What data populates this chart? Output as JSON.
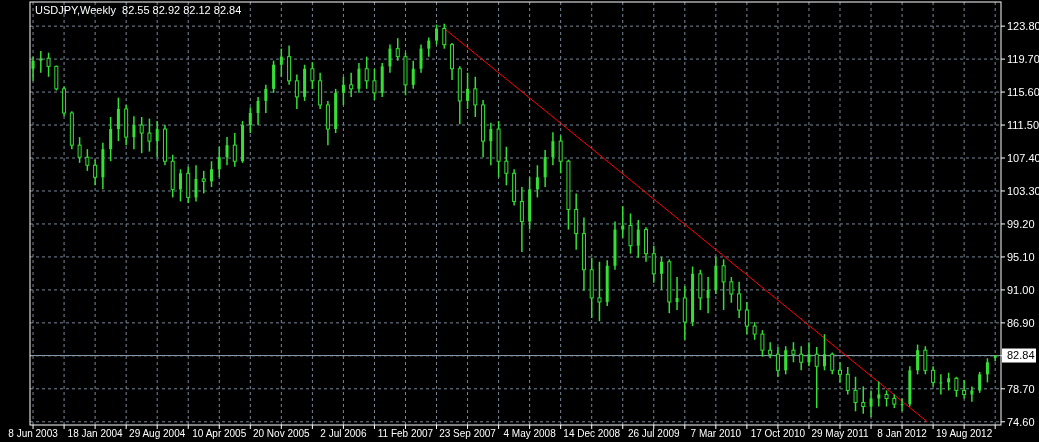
{
  "chart_data": {
    "type": "candlestick",
    "title": "USDJPY,Weekly  82.55 82.92 82.12 82.84",
    "color": "#33e033",
    "x": [
      "2003-06-08",
      "2003-07-06",
      "2003-08-03",
      "2003-08-31",
      "2003-09-28",
      "2003-10-26",
      "2003-11-23",
      "2003-12-21",
      "2004-01-18",
      "2004-02-15",
      "2004-03-14",
      "2004-04-11",
      "2004-05-09",
      "2004-06-06",
      "2004-07-04",
      "2004-08-01",
      "2004-08-29",
      "2004-09-26",
      "2004-10-24",
      "2004-11-21",
      "2004-12-19",
      "2005-01-16",
      "2005-02-13",
      "2005-03-13",
      "2005-04-10",
      "2005-05-08",
      "2005-06-05",
      "2005-07-03",
      "2005-07-31",
      "2005-08-28",
      "2005-09-25",
      "2005-10-23",
      "2005-11-20",
      "2005-12-18",
      "2006-01-15",
      "2006-02-12",
      "2006-03-12",
      "2006-04-09",
      "2006-05-07",
      "2006-06-04",
      "2006-07-02",
      "2006-07-30",
      "2006-08-27",
      "2006-09-24",
      "2006-10-22",
      "2006-11-19",
      "2006-12-17",
      "2007-01-14",
      "2007-02-11",
      "2007-03-11",
      "2007-04-08",
      "2007-05-06",
      "2007-06-03",
      "2007-07-01",
      "2007-07-29",
      "2007-08-26",
      "2007-09-23",
      "2007-10-21",
      "2007-11-18",
      "2007-12-16",
      "2008-01-13",
      "2008-02-10",
      "2008-03-09",
      "2008-04-06",
      "2008-05-04",
      "2008-06-01",
      "2008-06-29",
      "2008-07-27",
      "2008-08-24",
      "2008-09-21",
      "2008-10-19",
      "2008-11-16",
      "2008-12-14",
      "2009-01-11",
      "2009-02-08",
      "2009-03-08",
      "2009-04-05",
      "2009-05-03",
      "2009-05-31",
      "2009-06-28",
      "2009-07-26",
      "2009-08-23",
      "2009-09-20",
      "2009-10-18",
      "2009-11-15",
      "2009-12-13",
      "2010-01-10",
      "2010-02-07",
      "2010-03-07",
      "2010-04-04",
      "2010-05-02",
      "2010-05-30",
      "2010-06-27",
      "2010-07-25",
      "2010-08-22",
      "2010-09-19",
      "2010-10-17",
      "2010-11-14",
      "2010-12-12",
      "2011-01-09",
      "2011-02-06",
      "2011-03-06",
      "2011-04-03",
      "2011-05-01",
      "2011-05-29",
      "2011-06-26",
      "2011-07-24",
      "2011-08-21",
      "2011-09-18",
      "2011-10-16",
      "2011-11-13",
      "2011-12-11",
      "2012-01-08",
      "2012-02-05",
      "2012-03-04",
      "2012-04-01",
      "2012-04-29",
      "2012-05-27",
      "2012-06-24",
      "2012-07-22",
      "2012-08-19",
      "2012-09-16",
      "2012-10-14",
      "2012-11-11",
      "2012-12-09"
    ],
    "ohlc": [
      [
        118.5,
        120.0,
        117.0,
        119.5
      ],
      [
        119.5,
        120.7,
        118.0,
        119.8
      ],
      [
        119.8,
        120.5,
        117.5,
        118.8
      ],
      [
        118.8,
        118.9,
        115.8,
        116.0
      ],
      [
        116.0,
        116.3,
        112.6,
        113.0
      ],
      [
        113.0,
        113.2,
        108.5,
        109.0
      ],
      [
        109.0,
        110.0,
        106.8,
        107.5
      ],
      [
        107.5,
        108.5,
        105.8,
        106.5
      ],
      [
        106.5,
        107.2,
        104.0,
        105.0
      ],
      [
        105.0,
        109.3,
        103.5,
        108.5
      ],
      [
        108.5,
        112.5,
        107.0,
        111.0
      ],
      [
        111.0,
        114.9,
        109.5,
        113.5
      ],
      [
        113.5,
        114.0,
        109.0,
        110.0
      ],
      [
        110.0,
        112.6,
        108.5,
        111.5
      ],
      [
        111.5,
        112.5,
        108.0,
        110.5
      ],
      [
        110.5,
        112.3,
        108.2,
        109.5
      ],
      [
        109.5,
        112.0,
        107.5,
        111.0
      ],
      [
        111.0,
        111.5,
        106.5,
        107.0
      ],
      [
        107.0,
        107.8,
        102.5,
        103.5
      ],
      [
        103.5,
        106.0,
        102.0,
        105.5
      ],
      [
        105.5,
        106.3,
        101.8,
        102.5
      ],
      [
        102.5,
        106.5,
        102.0,
        104.8
      ],
      [
        104.8,
        105.8,
        103.0,
        104.5
      ],
      [
        104.5,
        107.0,
        103.8,
        106.0
      ],
      [
        106.0,
        108.8,
        105.0,
        107.5
      ],
      [
        107.5,
        110.0,
        106.5,
        109.0
      ],
      [
        109.0,
        110.5,
        106.3,
        107.0
      ],
      [
        107.0,
        112.0,
        106.8,
        111.5
      ],
      [
        111.5,
        113.7,
        110.5,
        113.0
      ],
      [
        113.0,
        115.0,
        111.5,
        114.5
      ],
      [
        114.5,
        116.5,
        113.0,
        116.0
      ],
      [
        116.0,
        119.5,
        115.5,
        119.0
      ],
      [
        119.0,
        121.0,
        117.5,
        120.0
      ],
      [
        120.0,
        121.4,
        116.5,
        117.0
      ],
      [
        117.0,
        117.8,
        113.5,
        115.0
      ],
      [
        115.0,
        119.0,
        114.5,
        118.5
      ],
      [
        118.5,
        119.3,
        116.0,
        117.0
      ],
      [
        117.0,
        118.0,
        113.5,
        114.0
      ],
      [
        114.0,
        114.5,
        109.0,
        111.0
      ],
      [
        111.0,
        116.0,
        110.5,
        115.5
      ],
      [
        115.5,
        117.5,
        114.0,
        116.5
      ],
      [
        116.5,
        118.0,
        115.0,
        116.0
      ],
      [
        116.0,
        119.2,
        115.5,
        118.5
      ],
      [
        118.5,
        120.0,
        116.0,
        117.0
      ],
      [
        117.0,
        118.5,
        114.6,
        115.5
      ],
      [
        115.5,
        119.2,
        115.0,
        118.8
      ],
      [
        118.8,
        121.5,
        118.0,
        121.0
      ],
      [
        121.0,
        122.3,
        119.5,
        120.0
      ],
      [
        120.0,
        120.5,
        115.2,
        116.5
      ],
      [
        116.5,
        119.5,
        116.0,
        118.5
      ],
      [
        118.5,
        121.5,
        118.0,
        121.0
      ],
      [
        121.0,
        122.4,
        120.0,
        122.0
      ],
      [
        122.0,
        124.0,
        121.5,
        123.5
      ],
      [
        123.5,
        124.1,
        121.0,
        121.5
      ],
      [
        121.5,
        121.7,
        117.1,
        118.5
      ],
      [
        118.5,
        118.8,
        111.6,
        114.5
      ],
      [
        114.5,
        118.0,
        113.5,
        116.0
      ],
      [
        116.0,
        117.5,
        112.5,
        114.0
      ],
      [
        114.0,
        114.6,
        107.5,
        109.5
      ],
      [
        109.5,
        111.8,
        106.5,
        111.0
      ],
      [
        111.0,
        112.0,
        105.0,
        107.0
      ],
      [
        107.0,
        108.8,
        104.0,
        105.5
      ],
      [
        105.5,
        106.0,
        101.5,
        102.0
      ],
      [
        102.0,
        103.8,
        95.7,
        99.5
      ],
      [
        99.5,
        105.0,
        98.5,
        103.5
      ],
      [
        103.5,
        106.5,
        102.5,
        105.0
      ],
      [
        105.0,
        108.4,
        103.8,
        107.5
      ],
      [
        107.5,
        110.6,
        106.5,
        109.5
      ],
      [
        109.5,
        110.2,
        105.5,
        107.0
      ],
      [
        107.0,
        107.2,
        98.5,
        101.0
      ],
      [
        101.0,
        103.0,
        96.0,
        98.0
      ],
      [
        98.0,
        100.0,
        90.9,
        93.5
      ],
      [
        93.5,
        95.0,
        87.5,
        90.0
      ],
      [
        90.0,
        94.5,
        87.1,
        89.5
      ],
      [
        89.5,
        94.7,
        89.0,
        94.0
      ],
      [
        94.0,
        99.5,
        93.5,
        98.5
      ],
      [
        98.5,
        101.4,
        97.5,
        99.0
      ],
      [
        99.0,
        100.5,
        95.5,
        96.5
      ],
      [
        96.5,
        99.7,
        95.0,
        98.5
      ],
      [
        98.5,
        98.8,
        94.5,
        95.5
      ],
      [
        95.5,
        96.5,
        91.9,
        93.0
      ],
      [
        93.0,
        95.1,
        91.0,
        94.5
      ],
      [
        94.5,
        94.8,
        88.1,
        89.5
      ],
      [
        89.5,
        92.6,
        88.5,
        90.0
      ],
      [
        90.0,
        91.5,
        84.8,
        87.0
      ],
      [
        87.0,
        93.9,
        86.5,
        93.0
      ],
      [
        93.0,
        93.5,
        88.5,
        90.0
      ],
      [
        90.0,
        92.6,
        88.1,
        91.0
      ],
      [
        91.0,
        95.1,
        90.5,
        94.0
      ],
      [
        94.0,
        94.8,
        88.5,
        92.0
      ],
      [
        92.0,
        92.6,
        89.4,
        90.5
      ],
      [
        90.5,
        92.0,
        87.5,
        88.5
      ],
      [
        88.5,
        89.5,
        85.5,
        86.5
      ],
      [
        86.5,
        87.0,
        84.8,
        85.5
      ],
      [
        85.5,
        86.0,
        82.7,
        83.5
      ],
      [
        83.5,
        84.5,
        82.5,
        83.0
      ],
      [
        83.0,
        83.9,
        80.2,
        81.0
      ],
      [
        81.0,
        84.0,
        80.5,
        83.5
      ],
      [
        83.5,
        84.5,
        82.0,
        83.0
      ],
      [
        83.0,
        84.0,
        81.0,
        82.0
      ],
      [
        82.0,
        84.5,
        81.5,
        83.0
      ],
      [
        83.0,
        83.9,
        76.3,
        81.5
      ],
      [
        81.5,
        85.5,
        81.0,
        83.0
      ],
      [
        83.0,
        83.2,
        80.5,
        81.0
      ],
      [
        81.0,
        82.0,
        79.5,
        80.5
      ],
      [
        80.5,
        81.4,
        78.0,
        78.5
      ],
      [
        78.5,
        80.2,
        75.9,
        77.0
      ],
      [
        77.0,
        79.0,
        75.6,
        76.5
      ],
      [
        76.5,
        78.5,
        75.2,
        77.5
      ],
      [
        77.5,
        79.6,
        76.5,
        78.0
      ],
      [
        78.0,
        78.5,
        76.5,
        77.5
      ],
      [
        77.5,
        78.0,
        76.3,
        76.8
      ],
      [
        76.8,
        77.5,
        75.9,
        76.8
      ],
      [
        76.8,
        81.5,
        76.5,
        81.0
      ],
      [
        81.0,
        84.2,
        80.5,
        83.5
      ],
      [
        83.5,
        84.0,
        80.5,
        81.0
      ],
      [
        81.0,
        81.5,
        79.0,
        79.5
      ],
      [
        79.5,
        80.5,
        78.0,
        79.5
      ],
      [
        79.5,
        80.7,
        78.5,
        80.0
      ],
      [
        80.0,
        80.2,
        77.7,
        78.5
      ],
      [
        78.5,
        79.8,
        77.5,
        78.0
      ],
      [
        78.0,
        79.0,
        77.1,
        78.5
      ],
      [
        78.5,
        80.8,
        78.2,
        80.5
      ],
      [
        80.5,
        82.5,
        79.5,
        82.0
      ],
      [
        82.55,
        82.92,
        82.12,
        82.84
      ]
    ],
    "series": [
      {
        "type": "line",
        "color": "#ff0000",
        "x": [
          "2007-07-01",
          "2012-04-08"
        ],
        "values": [
          123.5,
          74.6
        ]
      }
    ],
    "xlim": [
      "2003-05-28",
      "2012-12-30"
    ],
    "ylim": [
      74.2,
      126.8
    ],
    "xticks": [
      {
        "value": "2003-06-08",
        "label": "8 Jun 2003"
      },
      {
        "value": "2003-09-28",
        "label": null
      },
      {
        "value": "2004-01-18",
        "label": "18 Jan 2004"
      },
      {
        "value": "2004-05-09",
        "label": null
      },
      {
        "value": "2004-08-29",
        "label": "29 Aug 2004"
      },
      {
        "value": "2004-12-19",
        "label": null
      },
      {
        "value": "2005-04-10",
        "label": "10 Apr 2005"
      },
      {
        "value": "2005-07-31",
        "label": null
      },
      {
        "value": "2005-11-20",
        "label": "20 Nov 2005"
      },
      {
        "value": "2006-03-12",
        "label": null
      },
      {
        "value": "2006-07-02",
        "label": "2 Jul 2006"
      },
      {
        "value": "2006-10-22",
        "label": null
      },
      {
        "value": "2007-02-11",
        "label": "11 Feb 2007"
      },
      {
        "value": "2007-06-03",
        "label": null
      },
      {
        "value": "2007-09-23",
        "label": "23 Sep 2007"
      },
      {
        "value": "2008-01-13",
        "label": null
      },
      {
        "value": "2008-05-04",
        "label": "4 May 2008"
      },
      {
        "value": "2008-08-24",
        "label": null
      },
      {
        "value": "2008-12-14",
        "label": "14 Dec 2008"
      },
      {
        "value": "2009-04-05",
        "label": null
      },
      {
        "value": "2009-07-26",
        "label": "26 Jul 2009"
      },
      {
        "value": "2009-11-15",
        "label": null
      },
      {
        "value": "2010-03-07",
        "label": "7 Mar 2010"
      },
      {
        "value": "2010-06-27",
        "label": null
      },
      {
        "value": "2010-10-17",
        "label": "17 Oct 2010"
      },
      {
        "value": "2011-02-06",
        "label": null
      },
      {
        "value": "2011-05-29",
        "label": "29 May 2011"
      },
      {
        "value": "2011-09-18",
        "label": null
      },
      {
        "value": "2012-01-08",
        "label": "8 Jan 2012"
      },
      {
        "value": "2012-04-29",
        "label": null
      },
      {
        "value": "2012-08-19",
        "label": "19 Aug 2012"
      },
      {
        "value": "2012-12-09",
        "label": null
      }
    ],
    "yticks": [
      {
        "value": 74.6,
        "label": "74.60"
      },
      {
        "value": 78.7,
        "label": "78.70"
      },
      {
        "value": 82.8,
        "label": null
      },
      {
        "value": 86.9,
        "label": "86.90"
      },
      {
        "value": 91.0,
        "label": "91.00"
      },
      {
        "value": 95.1,
        "label": "95.10"
      },
      {
        "value": 99.2,
        "label": "99.20"
      },
      {
        "value": 103.3,
        "label": "103.30"
      },
      {
        "value": 107.4,
        "label": "107.40"
      },
      {
        "value": 111.5,
        "label": "111.50"
      },
      {
        "value": 115.6,
        "label": "115.60"
      },
      {
        "value": 119.7,
        "label": "119.70"
      },
      {
        "value": 123.8,
        "label": "123.80"
      }
    ],
    "grid": true,
    "ref_lines": [
      {
        "axis": "y",
        "value": 82.84,
        "label": "82.84",
        "color": "#8899aa"
      }
    ]
  }
}
